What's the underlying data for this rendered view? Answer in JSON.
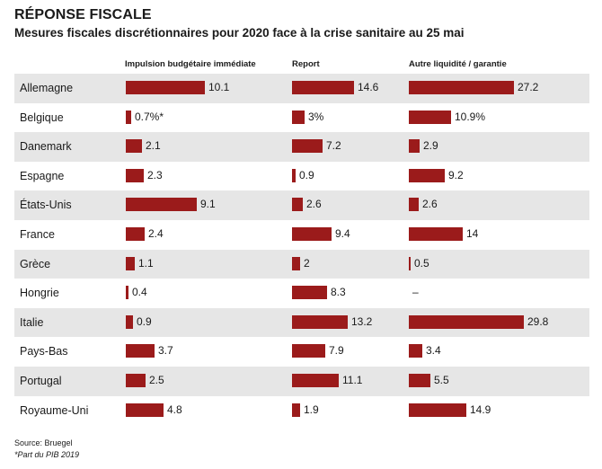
{
  "header": {
    "title": "RÉPONSE FISCALE",
    "subtitle": "Mesures fiscales discrétionnaires pour 2020 face à la crise sanitaire au 25 mai"
  },
  "footer": {
    "source": "Source: Bruegel",
    "note": "*Part du PIB 2019"
  },
  "colors": {
    "bar": "#9b1b1b",
    "shade": "#e6e6e6"
  },
  "chart_data": {
    "type": "bar",
    "title": "RÉPONSE FISCALE",
    "subtitle": "Mesures fiscales discrétionnaires pour 2020 face à la crise sanitaire au 25 mai",
    "orientation": "horizontal",
    "categories": [
      "Allemagne",
      "Belgique",
      "Danemark",
      "Espagne",
      "États-Unis",
      "France",
      "Grèce",
      "Hongrie",
      "Italie",
      "Pays-Bas",
      "Portugal",
      "Royaume-Uni"
    ],
    "series": [
      {
        "name": "Impulsion budgétaire immédiate",
        "values": [
          10.1,
          0.7,
          2.1,
          2.3,
          9.1,
          2.4,
          1.1,
          0.4,
          0.9,
          3.7,
          2.5,
          4.8
        ],
        "labels": [
          "10.1",
          "0.7%*",
          "2.1",
          "2.3",
          "9.1",
          "2.4",
          "1.1",
          "0.4",
          "0.9",
          "3.7",
          "2.5",
          "4.8"
        ]
      },
      {
        "name": "Report",
        "values": [
          14.6,
          3,
          7.2,
          0.9,
          2.6,
          9.4,
          2,
          8.3,
          13.2,
          7.9,
          11.1,
          1.9
        ],
        "labels": [
          "14.6",
          "3%",
          "7.2",
          "0.9",
          "2.6",
          "9.4",
          "2",
          "8.3",
          "13.2",
          "7.9",
          "11.1",
          "1.9"
        ]
      },
      {
        "name": "Autre liquidité / garantie",
        "values": [
          27.2,
          10.9,
          2.9,
          9.2,
          2.6,
          14,
          0.5,
          null,
          29.8,
          3.4,
          5.5,
          14.9
        ],
        "labels": [
          "27.2",
          "10.9%",
          "2.9",
          "9.2",
          "2.6",
          "14",
          "0.5",
          "–",
          "29.8",
          "3.4",
          "5.5",
          "14.9"
        ]
      }
    ]
  }
}
